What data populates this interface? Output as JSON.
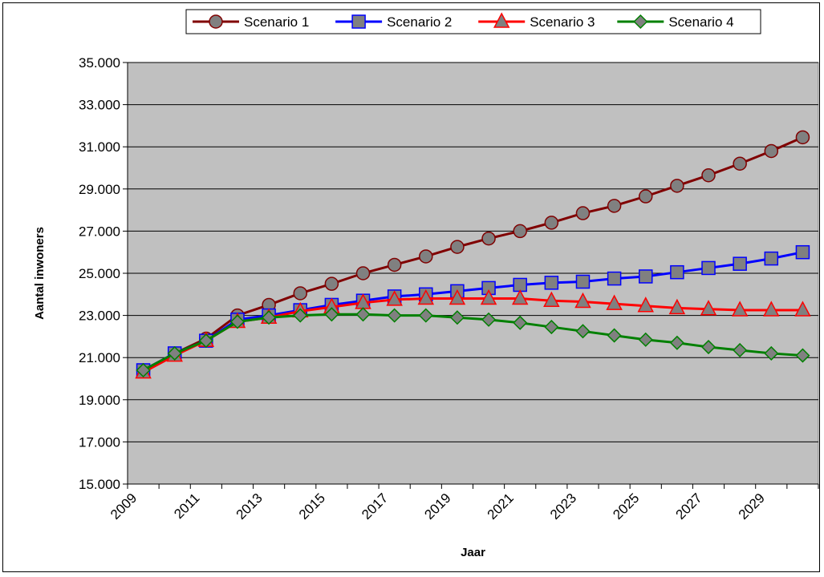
{
  "chart_data": {
    "type": "line",
    "title": "",
    "xlabel": "Jaar",
    "ylabel": "Aantal inwoners",
    "ylim": [
      15000,
      35000
    ],
    "yticks": [
      "15.000",
      "17.000",
      "19.000",
      "21.000",
      "23.000",
      "25.000",
      "27.000",
      "29.000",
      "31.000",
      "33.000",
      "35.000"
    ],
    "xtick_labels": [
      "2009",
      "2011",
      "2013",
      "2015",
      "2017",
      "2019",
      "2021",
      "2023",
      "2025",
      "2027",
      "2029"
    ],
    "x": [
      2009,
      2010,
      2011,
      2012,
      2013,
      2014,
      2015,
      2016,
      2017,
      2018,
      2019,
      2020,
      2021,
      2022,
      2023,
      2024,
      2025,
      2026,
      2027,
      2028,
      2029,
      2030
    ],
    "grid": "horizontal",
    "plot_background": "#c0c0c0",
    "legend_position": "top",
    "series": [
      {
        "name": "Scenario 1",
        "color": "#800000",
        "marker": "circle",
        "values": [
          20400,
          21200,
          21900,
          23000,
          23500,
          24050,
          24500,
          25000,
          25400,
          25800,
          26250,
          26650,
          27000,
          27400,
          27850,
          28200,
          28650,
          29150,
          29650,
          30200,
          30800,
          31450
        ]
      },
      {
        "name": "Scenario 2",
        "color": "#0000ff",
        "marker": "square",
        "values": [
          20400,
          21200,
          21800,
          22800,
          23000,
          23250,
          23500,
          23700,
          23900,
          24000,
          24150,
          24300,
          24450,
          24550,
          24600,
          24750,
          24850,
          25050,
          25250,
          25450,
          25700,
          26000
        ]
      },
      {
        "name": "Scenario 3",
        "color": "#ff0000",
        "marker": "triangle",
        "values": [
          20300,
          21100,
          21800,
          22700,
          22900,
          23200,
          23400,
          23600,
          23750,
          23800,
          23800,
          23800,
          23800,
          23700,
          23650,
          23550,
          23450,
          23350,
          23300,
          23250,
          23250,
          23250
        ]
      },
      {
        "name": "Scenario 4",
        "color": "#008000",
        "marker": "diamond",
        "values": [
          20400,
          21200,
          21800,
          22700,
          22900,
          23000,
          23050,
          23050,
          23000,
          23000,
          22900,
          22800,
          22650,
          22450,
          22250,
          22050,
          21850,
          21700,
          21500,
          21350,
          21200,
          21100
        ]
      }
    ]
  }
}
